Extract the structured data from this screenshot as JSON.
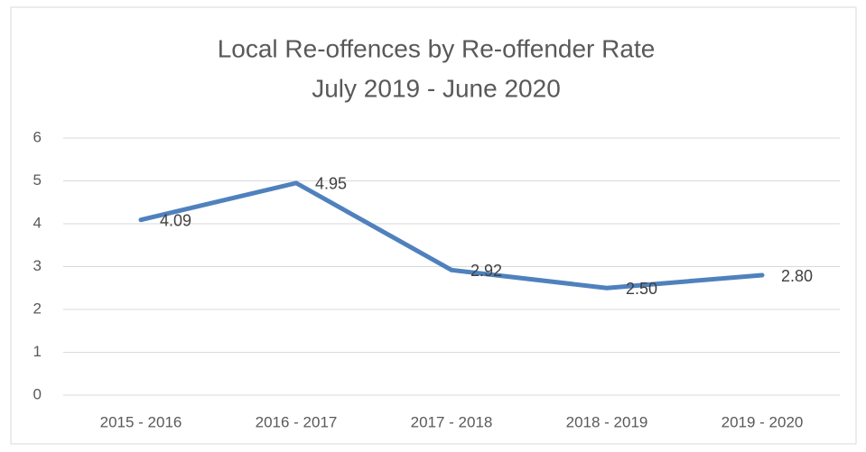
{
  "chart_data": {
    "type": "line",
    "title": "Local Re-offences by Re-offender Rate",
    "subtitle": "July 2019 - June 2020",
    "categories": [
      "2015 - 2016",
      "2016 - 2017",
      "2017 - 2018",
      "2018 - 2019",
      "2019 - 2020"
    ],
    "series": [
      {
        "name": "Re-offender Rate",
        "color": "#4f81bd",
        "values": [
          4.09,
          4.95,
          2.92,
          2.5,
          2.8
        ],
        "value_labels": [
          "4.09",
          "4.95",
          "2.92",
          "2.50",
          "2.80"
        ]
      }
    ],
    "ylim": [
      0,
      6
    ],
    "yticks": [
      0,
      1,
      2,
      3,
      4,
      5,
      6
    ],
    "grid": true,
    "legend": false
  }
}
